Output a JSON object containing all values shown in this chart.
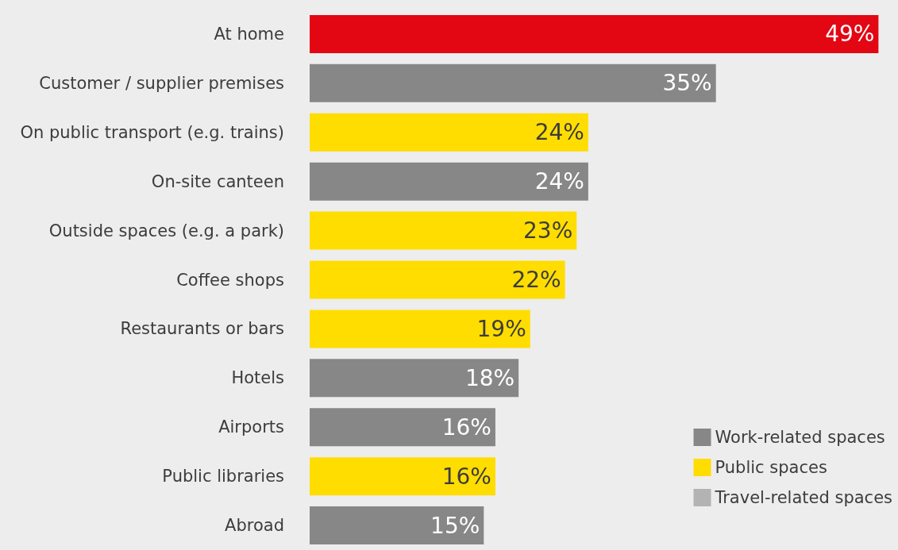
{
  "chart_data": {
    "type": "bar",
    "orientation": "horizontal",
    "stacked": true,
    "legend": "bottom right",
    "categories": [
      "At home",
      "Customer / supplier premises",
      "On public transport (e.g. trains)",
      "On-site canteen",
      "Outside spaces (e.g. a park)",
      "Coffee shops",
      "Restaurants or bars",
      "Hotels",
      "Airports",
      "Public libraries",
      "Abroad"
    ],
    "series": [
      {
        "color": "#e30613",
        "values": [
          49,
          null,
          null,
          null,
          null,
          null,
          null,
          null,
          null,
          null,
          null
        ],
        "value_labels": [
          "49%",
          null,
          null,
          null,
          null,
          null,
          null,
          null,
          null,
          null,
          null
        ]
      },
      {
        "name": "Work-related spaces",
        "color": "#878787",
        "values": [
          null,
          35,
          null,
          24,
          null,
          null,
          null,
          18,
          16,
          null,
          15
        ],
        "value_labels": [
          null,
          "35%",
          null,
          "24%",
          null,
          null,
          null,
          "18%",
          "16%",
          null,
          "15%"
        ]
      },
      {
        "name": "Public spaces",
        "color": "#ffdd00",
        "values": [
          null,
          null,
          24,
          null,
          23,
          22,
          19,
          null,
          null,
          16,
          null
        ],
        "value_labels": [
          null,
          null,
          "24%",
          null,
          "23%",
          "22%",
          "19%",
          null,
          null,
          "16%",
          null
        ]
      },
      {
        "name": "Travel-related spaces",
        "color": "#b3b3b3",
        "values": [
          null,
          null,
          null,
          null,
          null,
          null,
          null,
          null,
          null,
          null,
          null
        ]
      }
    ]
  }
}
